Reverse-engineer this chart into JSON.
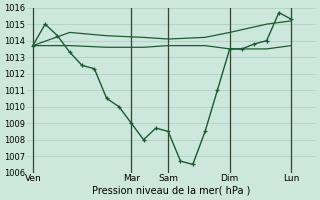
{
  "background_color": "#cce8dc",
  "grid_color": "#aaccbb",
  "line_color": "#1a5c30",
  "xlabel": "Pression niveau de la mer( hPa )",
  "ylim": [
    1006,
    1016
  ],
  "yticks": [
    1006,
    1007,
    1008,
    1009,
    1010,
    1011,
    1012,
    1013,
    1014,
    1015,
    1016
  ],
  "xtick_labels": [
    "Ven",
    "Mar",
    "Sam",
    "Dim",
    "Lun"
  ],
  "xtick_positions": [
    0,
    8,
    11,
    16,
    21
  ],
  "vline_positions": [
    0,
    8,
    11,
    16,
    21
  ],
  "xlim": [
    -0.5,
    23
  ],
  "series_main": {
    "x": [
      0,
      1,
      2,
      3,
      4,
      5,
      6,
      7,
      8,
      9,
      10,
      11,
      12,
      13,
      14,
      15,
      16,
      17,
      18,
      19,
      20,
      21
    ],
    "y": [
      1013.7,
      1015.0,
      1014.3,
      1013.3,
      1012.5,
      1012.3,
      1010.5,
      1010.0,
      1009.0,
      1008.0,
      1008.7,
      1008.5,
      1006.7,
      1006.5,
      1008.5,
      1011.0,
      1013.5,
      1013.5,
      1013.8,
      1014.0,
      1015.7,
      1015.3
    ]
  },
  "series_upper": {
    "x": [
      0,
      3,
      6,
      9,
      11,
      14,
      16,
      19,
      21
    ],
    "y": [
      1013.7,
      1014.5,
      1014.3,
      1014.2,
      1014.1,
      1014.2,
      1014.5,
      1015.0,
      1015.2
    ]
  },
  "series_lower": {
    "x": [
      0,
      3,
      6,
      9,
      11,
      14,
      16,
      19,
      21
    ],
    "y": [
      1013.7,
      1013.7,
      1013.6,
      1013.6,
      1013.7,
      1013.7,
      1013.5,
      1013.5,
      1013.7
    ]
  }
}
